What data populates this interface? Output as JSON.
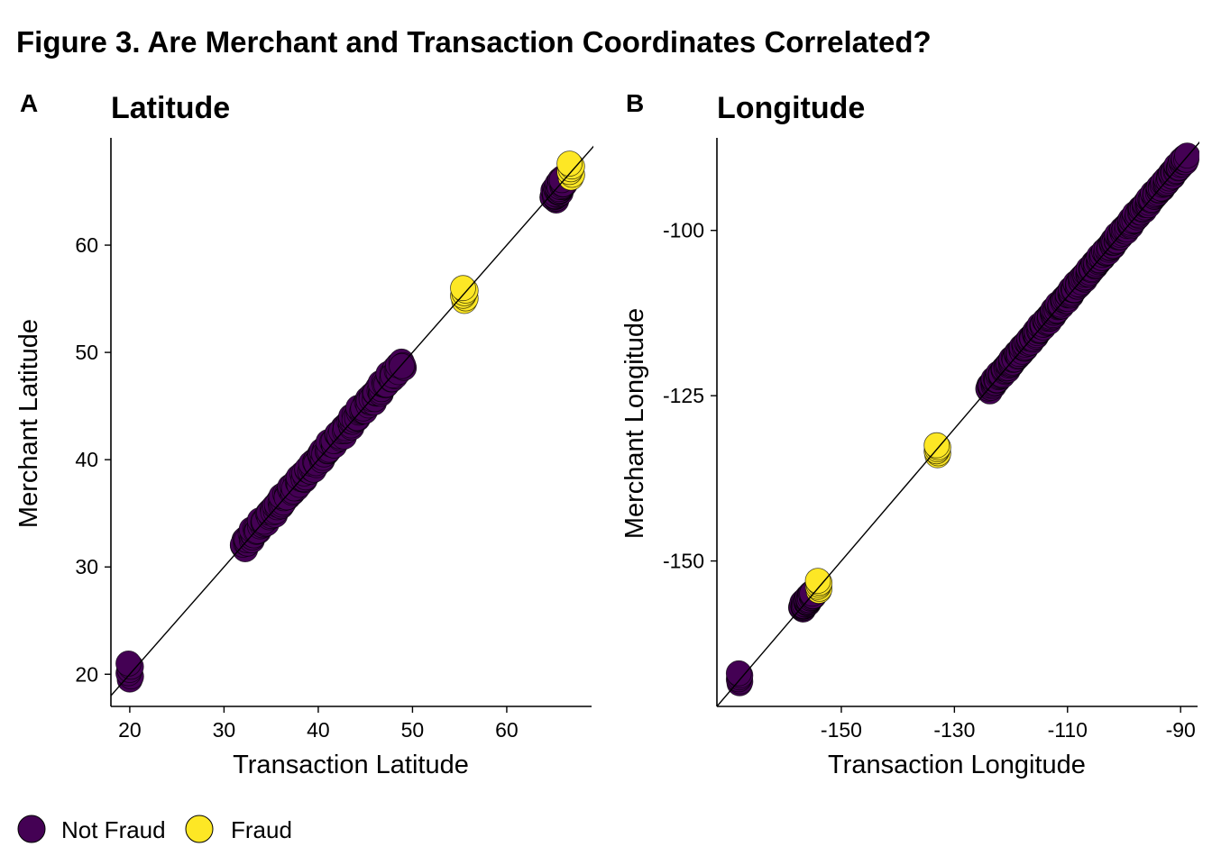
{
  "figure": {
    "title": "Figure 3. Are Merchant and Transaction Coordinates Correlated?"
  },
  "legend": {
    "position": "bottom-left",
    "entries": [
      {
        "label": "Not Fraud",
        "color": "#440154"
      },
      {
        "label": "Fraud",
        "color": "#FDE725"
      }
    ]
  },
  "chart_data": [
    {
      "type": "scatter",
      "panel_tag": "A",
      "title": "Latitude",
      "xlabel": "Transaction Latitude",
      "ylabel": "Merchant Latitude",
      "xlim": [
        18,
        69
      ],
      "ylim": [
        17,
        70
      ],
      "xticks": [
        20,
        30,
        40,
        50,
        60
      ],
      "yticks": [
        20,
        30,
        40,
        50,
        60
      ],
      "grid": false,
      "reference_line": "y = x",
      "series": [
        {
          "name": "Not Fraud",
          "color": "#440154",
          "clusters": [
            {
              "x": 20,
              "y_range": [
                19.5,
                21
              ]
            },
            {
              "x_range": [
                32,
                49
              ],
              "y_range": [
                32,
                49
              ]
            },
            {
              "x_range": [
                65,
                66
              ],
              "y_range": [
                64.5,
                66
              ]
            }
          ]
        },
        {
          "name": "Fraud",
          "color": "#FDE725",
          "clusters": [
            {
              "x": 55.5,
              "y_range": [
                54.8,
                56
              ]
            },
            {
              "x": 66.8,
              "y_range": [
                66.3,
                67.6
              ]
            }
          ]
        }
      ]
    },
    {
      "type": "scatter",
      "panel_tag": "B",
      "title": "Longitude",
      "xlabel": "Transaction Longitude",
      "ylabel": "Merchant Longitude",
      "xlim": [
        -172,
        -87
      ],
      "ylim": [
        -172,
        -86
      ],
      "xticks": [
        -150,
        -130,
        -110,
        -90
      ],
      "yticks": [
        -150,
        -125,
        -100
      ],
      "grid": false,
      "reference_line": "y = x",
      "series": [
        {
          "name": "Not Fraud",
          "color": "#440154",
          "clusters": [
            {
              "x": -168,
              "y_range": [
                -168.5,
                -167
              ]
            },
            {
              "x_range": [
                -157,
                -155
              ],
              "y_range": [
                -157,
                -155
              ]
            },
            {
              "x_range": [
                -124,
                -89
              ],
              "y_range": [
                -124,
                -89
              ]
            }
          ]
        },
        {
          "name": "Fraud",
          "color": "#FDE725",
          "clusters": [
            {
              "x": -154,
              "y_range": [
                -154.5,
                -153
              ]
            },
            {
              "x": -133,
              "y_range": [
                -134,
                -132.5
              ]
            }
          ]
        }
      ]
    }
  ]
}
